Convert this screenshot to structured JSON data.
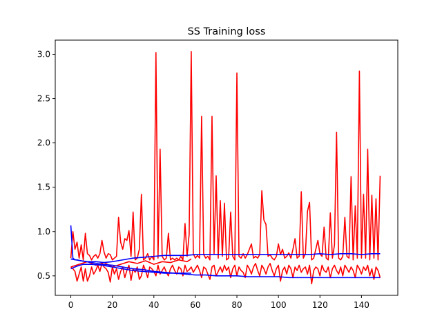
{
  "chart_data": {
    "type": "line",
    "title": "SS Training loss",
    "xlabel": "",
    "ylabel": "",
    "xlim": [
      -7.5,
      157.5
    ],
    "ylim": [
      0.28,
      3.16
    ],
    "xticks": [
      0,
      20,
      40,
      60,
      80,
      100,
      120,
      140
    ],
    "yticks": [
      0.5,
      1.0,
      1.5,
      2.0,
      2.5,
      3.0
    ],
    "ytick_labels": [
      "0.5",
      "1.0",
      "1.5",
      "2.0",
      "2.5",
      "3.0"
    ],
    "grid": false,
    "series": [
      {
        "color": "#ff0000",
        "x": [
          0,
          1,
          2,
          3,
          4,
          5,
          6,
          7,
          8,
          9,
          10,
          11,
          12,
          13,
          14,
          15,
          16,
          17,
          18,
          19,
          20,
          21,
          22,
          23,
          24,
          25,
          26,
          27,
          28,
          29,
          30,
          31,
          32,
          33,
          34,
          35,
          36,
          37,
          38,
          39,
          40,
          41,
          42,
          43,
          44,
          45,
          46,
          47,
          48,
          49,
          50,
          51,
          52,
          53,
          54,
          55,
          56,
          57,
          58,
          59,
          60,
          61,
          62,
          63,
          64,
          65,
          66,
          67,
          68,
          69,
          70,
          71,
          72,
          73,
          74,
          75,
          76,
          77,
          78,
          79,
          80,
          81,
          82,
          83,
          84,
          85,
          86,
          87,
          88,
          89,
          90,
          91,
          92,
          93,
          94,
          95,
          96,
          97,
          98,
          99,
          100,
          101,
          102,
          103,
          104,
          105,
          106,
          107,
          108,
          109,
          110,
          111,
          112,
          113,
          114,
          115,
          116,
          117,
          118,
          119,
          120,
          121,
          122,
          123,
          124,
          125,
          126,
          127,
          128,
          129,
          130,
          131,
          132,
          133,
          134,
          135,
          136,
          137,
          138,
          139,
          140,
          141,
          142,
          143,
          144,
          145,
          146,
          147,
          148,
          149
        ],
        "values": [
          0.7,
          1.0,
          0.8,
          0.88,
          0.7,
          0.85,
          0.68,
          0.98,
          0.75,
          0.73,
          0.68,
          0.72,
          0.74,
          0.7,
          0.75,
          0.9,
          0.77,
          0.7,
          0.75,
          0.74,
          0.68,
          0.7,
          0.72,
          1.16,
          0.88,
          0.8,
          0.92,
          0.9,
          1.01,
          0.72,
          1.22,
          0.68,
          0.7,
          0.8,
          1.42,
          0.68,
          0.7,
          0.75,
          0.68,
          0.72,
          0.68,
          3.02,
          0.7,
          1.93,
          0.72,
          0.68,
          0.7,
          0.98,
          0.68,
          0.7,
          0.68,
          0.7,
          0.68,
          0.72,
          0.68,
          1.09,
          0.72,
          0.97,
          3.03,
          0.75,
          0.7,
          0.73,
          0.7,
          2.3,
          0.74,
          0.7,
          0.72,
          0.68,
          2.3,
          0.75,
          1.63,
          0.7,
          1.35,
          0.72,
          1.32,
          0.68,
          0.7,
          1.22,
          0.72,
          0.68,
          2.79,
          0.72,
          0.7,
          0.75,
          0.7,
          0.74,
          0.8,
          0.86,
          0.7,
          0.72,
          0.7,
          0.74,
          1.46,
          1.13,
          1.08,
          0.72,
          0.74,
          0.7,
          0.68,
          0.72,
          0.86,
          0.74,
          0.8,
          0.7,
          0.72,
          0.76,
          0.7,
          0.8,
          0.92,
          0.7,
          0.72,
          1.45,
          0.7,
          0.75,
          1.23,
          1.33,
          0.68,
          0.7,
          0.8,
          0.9,
          0.75,
          0.72,
          1.05,
          0.7,
          0.68,
          1.21,
          0.7,
          0.85,
          2.12,
          0.7,
          0.68,
          0.72,
          1.16,
          0.72,
          0.7,
          1.62,
          0.68,
          1.29,
          0.7,
          2.81,
          0.7,
          1.42,
          0.7,
          1.93,
          0.68,
          1.41,
          0.7,
          1.37,
          0.68,
          1.63
        ]
      },
      {
        "color": "#ff0000",
        "x": [
          0,
          1,
          2,
          3,
          4,
          5,
          6,
          7,
          8,
          9,
          10,
          11,
          12,
          13,
          14,
          15,
          16,
          17,
          18,
          19,
          20,
          21,
          22,
          23,
          24,
          25,
          26,
          27,
          28,
          29,
          30,
          31,
          32,
          33,
          34,
          35,
          36,
          37,
          38,
          39,
          40,
          41,
          42,
          43,
          44,
          45,
          46,
          47,
          48,
          49,
          50,
          51,
          52,
          53,
          54,
          55,
          56,
          57,
          58,
          59,
          60,
          61,
          62,
          63,
          64,
          65,
          66,
          67,
          68,
          69,
          70,
          71,
          72,
          73,
          74,
          75,
          76,
          77,
          78,
          79,
          80,
          81,
          82,
          83,
          84,
          85,
          86,
          87,
          88,
          89,
          90,
          91,
          92,
          93,
          94,
          95,
          96,
          97,
          98,
          99,
          100,
          101,
          102,
          103,
          104,
          105,
          106,
          107,
          108,
          109,
          110,
          111,
          112,
          113,
          114,
          115,
          116,
          117,
          118,
          119,
          120,
          121,
          122,
          123,
          124,
          125,
          126,
          127,
          128,
          129,
          130,
          131,
          132,
          133,
          134,
          135,
          136,
          137,
          138,
          139,
          140,
          141,
          142,
          143,
          144,
          145,
          146,
          147,
          148,
          149
        ],
        "values": [
          0.6,
          0.58,
          0.55,
          0.44,
          0.52,
          0.6,
          0.44,
          0.58,
          0.44,
          0.5,
          0.6,
          0.52,
          0.56,
          0.62,
          0.55,
          0.64,
          0.6,
          0.58,
          0.54,
          0.43,
          0.6,
          0.52,
          0.58,
          0.46,
          0.55,
          0.6,
          0.48,
          0.56,
          0.62,
          0.45,
          0.58,
          0.54,
          0.6,
          0.46,
          0.5,
          0.62,
          0.56,
          0.48,
          0.6,
          0.58,
          0.55,
          0.5,
          0.62,
          0.52,
          0.56,
          0.6,
          0.54,
          0.5,
          0.58,
          0.62,
          0.56,
          0.52,
          0.6,
          0.58,
          0.5,
          0.62,
          0.55,
          0.57,
          0.6,
          0.54,
          0.58,
          0.62,
          0.56,
          0.48,
          0.6,
          0.58,
          0.52,
          0.46,
          0.6,
          0.62,
          0.5,
          0.55,
          0.6,
          0.54,
          0.62,
          0.56,
          0.6,
          0.48,
          0.58,
          0.62,
          0.5,
          0.6,
          0.56,
          0.54,
          0.48,
          0.62,
          0.58,
          0.52,
          0.6,
          0.64,
          0.56,
          0.5,
          0.62,
          0.58,
          0.52,
          0.6,
          0.64,
          0.56,
          0.5,
          0.58,
          0.62,
          0.44,
          0.56,
          0.6,
          0.52,
          0.62,
          0.58,
          0.48,
          0.6,
          0.56,
          0.62,
          0.54,
          0.58,
          0.6,
          0.52,
          0.62,
          0.41,
          0.56,
          0.6,
          0.58,
          0.5,
          0.62,
          0.56,
          0.54,
          0.6,
          0.48,
          0.58,
          0.62,
          0.56,
          0.52,
          0.6,
          0.5,
          0.62,
          0.58,
          0.54,
          0.6,
          0.56,
          0.48,
          0.62,
          0.58,
          0.52,
          0.6,
          0.56,
          0.62,
          0.5,
          0.58,
          0.46,
          0.6,
          0.56,
          0.48
        ]
      },
      {
        "color": "#ff0000",
        "x": [
          0,
          4,
          8,
          12,
          16,
          20,
          24,
          28,
          32,
          36,
          40,
          44,
          48,
          52,
          56,
          58
        ],
        "values": [
          0.6,
          0.63,
          0.66,
          0.62,
          0.65,
          0.6,
          0.63,
          0.66,
          0.64,
          0.67,
          0.63,
          0.66,
          0.65,
          0.68,
          0.66,
          0.69
        ]
      },
      {
        "color": "#0000ff",
        "x": [
          0,
          1,
          2,
          3,
          5,
          8,
          12,
          16,
          20,
          25,
          30,
          35,
          40,
          45,
          50,
          55,
          60,
          65,
          70,
          75,
          80,
          85,
          90,
          95,
          100,
          105,
          110,
          115,
          120,
          125,
          130,
          135,
          140,
          145,
          149
        ],
        "values": [
          1.07,
          0.7,
          0.68,
          0.68,
          0.67,
          0.66,
          0.66,
          0.65,
          0.66,
          0.68,
          0.7,
          0.71,
          0.72,
          0.73,
          0.73,
          0.73,
          0.74,
          0.74,
          0.74,
          0.74,
          0.74,
          0.74,
          0.74,
          0.74,
          0.74,
          0.74,
          0.74,
          0.74,
          0.75,
          0.74,
          0.75,
          0.75,
          0.74,
          0.75,
          0.75
        ]
      },
      {
        "color": "#0000ff",
        "x": [
          0,
          5,
          10,
          15,
          20,
          25,
          30,
          35,
          40,
          45,
          50,
          55,
          60,
          65,
          70,
          75,
          80,
          85,
          90,
          95,
          100,
          105,
          110,
          115,
          120,
          125,
          130,
          135,
          140,
          145,
          149
        ],
        "values": [
          0.69,
          0.67,
          0.65,
          0.63,
          0.62,
          0.6,
          0.58,
          0.57,
          0.55,
          0.54,
          0.53,
          0.52,
          0.51,
          0.51,
          0.5,
          0.5,
          0.5,
          0.49,
          0.49,
          0.49,
          0.49,
          0.48,
          0.48,
          0.48,
          0.48,
          0.48,
          0.48,
          0.48,
          0.48,
          0.48,
          0.48
        ]
      },
      {
        "color": "#0000ff",
        "x": [
          0,
          3,
          6,
          10,
          15,
          20,
          25,
          30,
          35,
          40,
          45,
          50,
          55,
          58
        ],
        "values": [
          0.58,
          0.61,
          0.63,
          0.63,
          0.62,
          0.6,
          0.58,
          0.56,
          0.55,
          0.54,
          0.53,
          0.53,
          0.53,
          0.53
        ]
      }
    ]
  }
}
